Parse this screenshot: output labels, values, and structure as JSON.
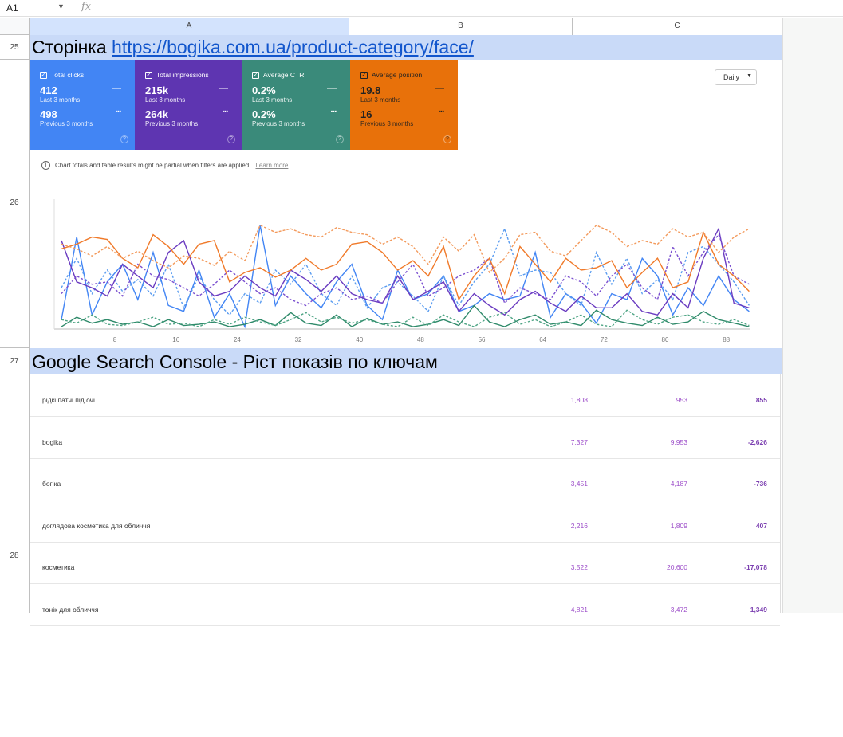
{
  "formula_bar": {
    "cell_ref": "A1",
    "fx": "fx"
  },
  "columns": [
    "A",
    "B",
    "C"
  ],
  "rows": {
    "r25": "25",
    "r26": "26",
    "r27": "27",
    "r28": "28"
  },
  "heading1": {
    "prefix": "Сторінка ",
    "link": "https://bogika.com.ua/product-category/face/"
  },
  "heading2": "Google Search Console - Ріст показів по ключам",
  "cards": [
    {
      "label": "Total clicks",
      "value": "412",
      "value_period": "Last 3 months",
      "prev": "498",
      "prev_period": "Previous 3 months",
      "color": "#4285f4"
    },
    {
      "label": "Total impressions",
      "value": "215k",
      "value_period": "Last 3 months",
      "prev": "264k",
      "prev_period": "Previous 3 months",
      "color": "#5e35b1"
    },
    {
      "label": "Average CTR",
      "value": "0.2%",
      "value_period": "Last 3 months",
      "prev": "0.2%",
      "prev_period": "Previous 3 months",
      "color": "#3a8a7a"
    },
    {
      "label": "Average position",
      "value": "19.8",
      "value_period": "Last 3 months",
      "prev": "16",
      "prev_period": "Previous 3 months",
      "color": "#e8710a"
    }
  ],
  "daily_select": "Daily",
  "note": {
    "text": "Chart totals and table results might be partial when filters are applied.",
    "link": "Learn more"
  },
  "chart_data": {
    "type": "line",
    "x_ticks": [
      "8",
      "16",
      "24",
      "32",
      "40",
      "48",
      "56",
      "64",
      "72",
      "80",
      "88"
    ],
    "x_range": [
      1,
      92
    ],
    "y_range": [
      0,
      100
    ],
    "x_step": 2,
    "series": [
      {
        "name": "Total clicks",
        "style": "solid",
        "color": "#4285f4",
        "values": [
          8,
          78,
          12,
          40,
          55,
          25,
          65,
          20,
          15,
          50,
          10,
          30,
          2,
          88,
          20,
          45,
          30,
          18,
          40,
          55,
          20,
          8,
          50,
          25,
          30,
          45,
          15,
          20,
          30,
          25,
          28,
          65,
          10,
          30,
          22,
          5,
          30,
          25,
          60,
          45,
          12,
          35,
          20,
          45,
          25,
          15
        ]
      },
      {
        "name": "Total clicks (prev)",
        "style": "dashed",
        "color": "#5a9cf0",
        "values": [
          35,
          60,
          30,
          50,
          32,
          42,
          28,
          55,
          18,
          45,
          25,
          12,
          30,
          22,
          50,
          38,
          55,
          30,
          20,
          45,
          18,
          35,
          40,
          28,
          15,
          45,
          20,
          40,
          55,
          85,
          45,
          50,
          48,
          30,
          20,
          65,
          38,
          60,
          30,
          42,
          25,
          65,
          70,
          55,
          40,
          20
        ]
      },
      {
        "name": "Total impressions",
        "style": "solid",
        "color": "#6a3bc0",
        "values": [
          75,
          40,
          35,
          28,
          55,
          45,
          35,
          65,
          75,
          40,
          28,
          32,
          45,
          35,
          28,
          50,
          42,
          32,
          45,
          30,
          25,
          22,
          45,
          25,
          32,
          40,
          15,
          30,
          20,
          12,
          25,
          32,
          22,
          15,
          28,
          18,
          18,
          30,
          15,
          12,
          30,
          18,
          60,
          85,
          22,
          18
        ]
      },
      {
        "name": "Total impressions (prev)",
        "style": "dashed",
        "color": "#7a4fd0",
        "values": [
          30,
          45,
          38,
          40,
          28,
          55,
          45,
          42,
          35,
          28,
          38,
          50,
          40,
          30,
          35,
          25,
          20,
          30,
          35,
          25,
          28,
          22,
          40,
          55,
          28,
          35,
          45,
          50,
          60,
          22,
          35,
          30,
          25,
          45,
          40,
          28,
          45,
          55,
          35,
          25,
          70,
          45,
          65,
          80,
          45,
          38
        ]
      },
      {
        "name": "Average position",
        "style": "solid",
        "color": "#f07a2a",
        "values": [
          68,
          72,
          78,
          76,
          60,
          52,
          80,
          70,
          55,
          72,
          75,
          40,
          48,
          52,
          44,
          50,
          60,
          50,
          55,
          72,
          74,
          65,
          50,
          58,
          45,
          70,
          25,
          45,
          60,
          30,
          70,
          55,
          40,
          60,
          50,
          52,
          58,
          35,
          48,
          60,
          35,
          40,
          82,
          55,
          45,
          32
        ]
      },
      {
        "name": "Average position (prev)",
        "style": "dashed",
        "color": "#f39a5c",
        "values": [
          72,
          68,
          62,
          70,
          60,
          66,
          58,
          52,
          62,
          60,
          54,
          66,
          58,
          88,
          82,
          85,
          80,
          78,
          86,
          82,
          80,
          72,
          78,
          70,
          55,
          78,
          66,
          80,
          48,
          60,
          80,
          82,
          66,
          62,
          75,
          88,
          82,
          70,
          75,
          72,
          85,
          78,
          82,
          65,
          78,
          85
        ]
      },
      {
        "name": "Average CTR",
        "style": "solid",
        "color": "#2f8a6a",
        "values": [
          2,
          10,
          5,
          8,
          4,
          6,
          2,
          8,
          3,
          4,
          6,
          2,
          4,
          8,
          3,
          14,
          5,
          3,
          12,
          2,
          9,
          4,
          6,
          2,
          4,
          8,
          3,
          20,
          6,
          2,
          8,
          12,
          4,
          6,
          3,
          16,
          8,
          5,
          3,
          10,
          4,
          6,
          15,
          8,
          5,
          2
        ]
      },
      {
        "name": "Average CTR (prev)",
        "style": "dashed",
        "color": "#4fa585",
        "values": [
          8,
          5,
          12,
          4,
          3,
          6,
          10,
          4,
          5,
          2,
          8,
          4,
          10,
          6,
          3,
          8,
          14,
          6,
          10,
          5,
          8,
          4,
          2,
          10,
          3,
          12,
          6,
          2,
          10,
          14,
          4,
          8,
          2,
          6,
          12,
          4,
          2,
          16,
          8,
          4,
          10,
          12,
          6,
          4,
          8,
          3
        ]
      }
    ]
  },
  "table": [
    {
      "keyword": "рідкі патчі під очі",
      "current": "1,808",
      "previous": "953",
      "diff": "855"
    },
    {
      "keyword": "bogika",
      "current": "7,327",
      "previous": "9,953",
      "diff": "-2,626"
    },
    {
      "keyword": "богіка",
      "current": "3,451",
      "previous": "4,187",
      "diff": "-736"
    },
    {
      "keyword": "доглядова косметика для обличчя",
      "current": "2,216",
      "previous": "1,809",
      "diff": "407"
    },
    {
      "keyword": "косметика",
      "current": "3,522",
      "previous": "20,600",
      "diff": "-17,078"
    },
    {
      "keyword": "тонік для обличчя",
      "current": "4,821",
      "previous": "3,472",
      "diff": "1,349"
    }
  ]
}
